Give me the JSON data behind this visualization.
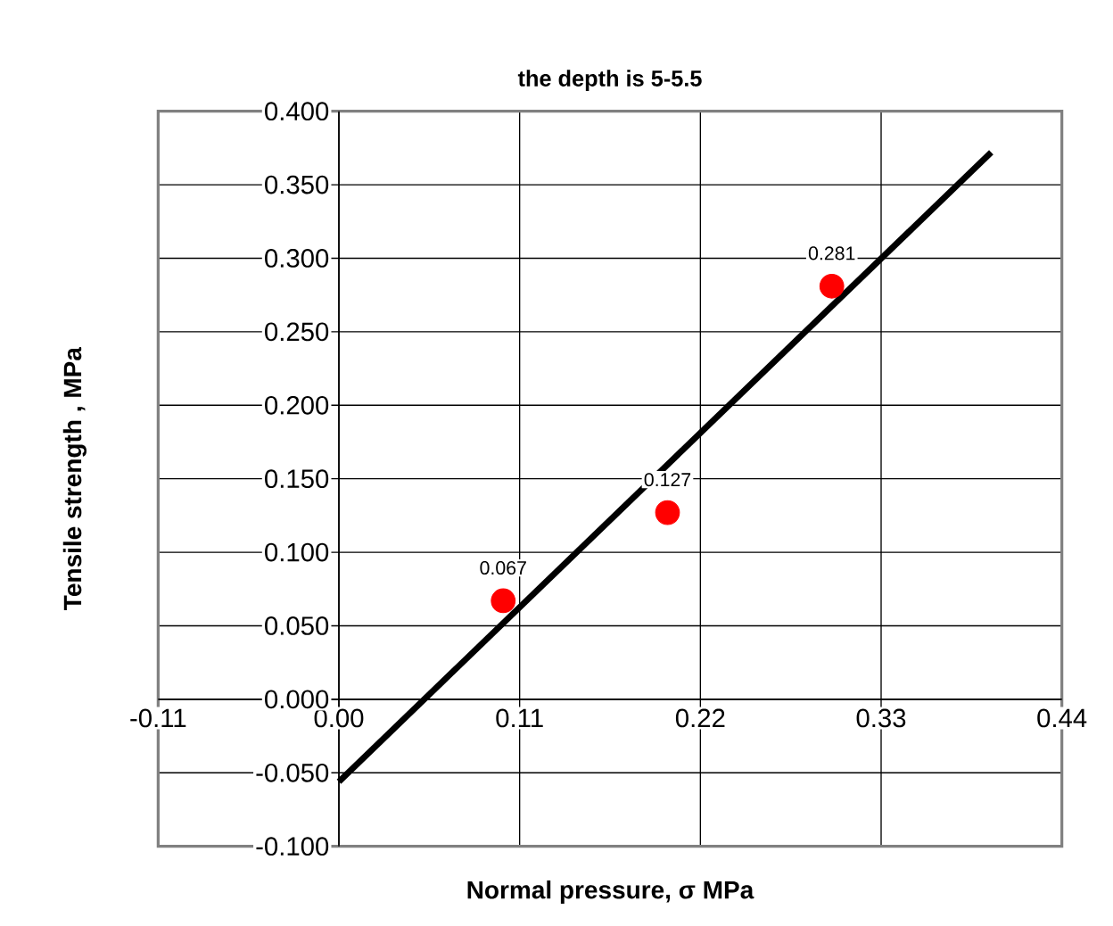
{
  "chart_data": {
    "type": "scatter",
    "title": "the depth is 5-5.5",
    "xlabel": "Normal pressure, σ MPa",
    "ylabel": "Tensile strength , MPa",
    "series": [
      {
        "color": "#ff0000",
        "marker": "circle",
        "x": [
          0.1,
          0.2,
          0.3
        ],
        "values": [
          0.067,
          0.127,
          0.281
        ],
        "value_labels": [
          "0.067",
          "0.127",
          "0.281"
        ]
      },
      {
        "type": "line",
        "color": "#000000",
        "x": [
          0,
          0.397
        ],
        "values": [
          -0.056,
          0.372
        ]
      }
    ],
    "grid": true,
    "xlim": [
      -0.11,
      0.44
    ],
    "ylim": [
      -0.1,
      0.4
    ],
    "xticks": [
      {
        "value": -0.11,
        "label": "-0.11"
      },
      {
        "value": 0,
        "label": "0.00"
      },
      {
        "value": 0.11,
        "label": "0.11"
      },
      {
        "value": 0.22,
        "label": "0.22"
      },
      {
        "value": 0.33,
        "label": "0.33"
      },
      {
        "value": 0.44,
        "label": "0.44"
      }
    ],
    "yticks": [
      {
        "value": -0.1,
        "label": "-0.100"
      },
      {
        "value": -0.05,
        "label": "-0.050"
      },
      {
        "value": 0,
        "label": "0.000"
      },
      {
        "value": 0.05,
        "label": "0.050"
      },
      {
        "value": 0.1,
        "label": "0.100"
      },
      {
        "value": 0.15,
        "label": "0.150"
      },
      {
        "value": 0.2,
        "label": "0.200"
      },
      {
        "value": 0.25,
        "label": "0.250"
      },
      {
        "value": 0.3,
        "label": "0.300"
      },
      {
        "value": 0.35,
        "label": "0.350"
      },
      {
        "value": 0.4,
        "label": "0.400"
      }
    ]
  }
}
